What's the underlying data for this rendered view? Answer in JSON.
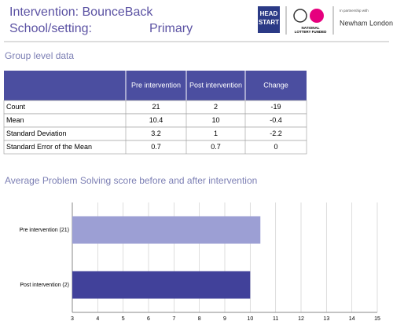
{
  "header": {
    "title": "Intervention: BounceBack",
    "setting_label": "School/setting:",
    "setting_value": "Primary",
    "logos": [
      "HEAD",
      "START",
      "NATIONAL",
      "LOTTERY FUNDED",
      "In partnership with",
      "Newham London"
    ]
  },
  "section_title": "Group level data",
  "table": {
    "columns": [
      "Pre intervention",
      "Post intervention",
      "Change"
    ],
    "rows": [
      {
        "label": "Count",
        "values": [
          21,
          2,
          -19
        ]
      },
      {
        "label": "Mean",
        "values": [
          10.4,
          10,
          -0.4
        ]
      },
      {
        "label": "Standard Deviation",
        "values": [
          3.2,
          1,
          -2.2
        ]
      },
      {
        "label": "Standard Error of the Mean",
        "values": [
          0.7,
          0.7,
          0
        ]
      }
    ]
  },
  "chart_data": {
    "type": "bar",
    "orientation": "horizontal",
    "title": "Average Problem Solving score before and after intervention",
    "categories": [
      "Pre intervention (21)",
      "Post intervention (2)"
    ],
    "values": [
      10.4,
      10
    ],
    "colors": [
      "#9c9fd4",
      "#41419a"
    ],
    "xlim": [
      3,
      15
    ],
    "xticks": [
      3,
      4,
      5,
      6,
      7,
      8,
      9,
      10,
      11,
      12,
      13,
      14,
      15
    ],
    "grid": true
  }
}
